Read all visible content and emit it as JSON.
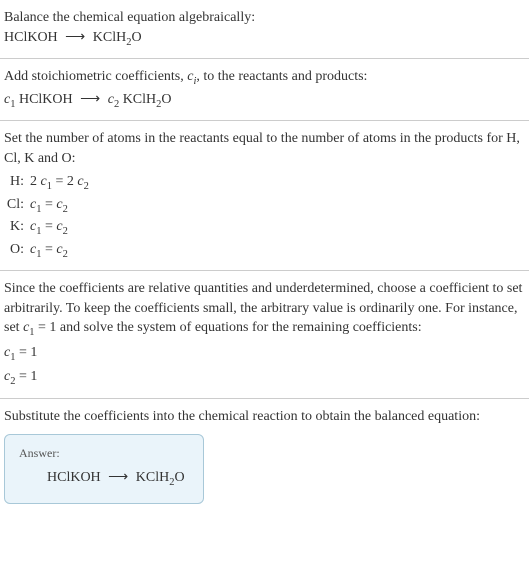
{
  "section1": {
    "line1_pre": "Balance the chemical equation algebraically:",
    "eq_left": "HClKOH",
    "eq_arrow": "⟶",
    "eq_right": "KClH",
    "eq_right_sub": "2",
    "eq_right_tail": "O"
  },
  "section2": {
    "line1_pre": "Add stoichiometric coefficients, ",
    "ci_c": "c",
    "ci_i": "i",
    "line1_post": ", to the reactants and products:",
    "c1_c": "c",
    "c1_1": "1",
    "sp1": " HClKOH ",
    "arrow": "⟶",
    "c2_c": "c",
    "c2_2": "2",
    "sp2": " KClH",
    "sub2": "2",
    "tail": "O"
  },
  "section3": {
    "intro": "Set the number of atoms in the reactants equal to the number of atoms in the products for H, Cl, K and O:",
    "rows": [
      {
        "label": "H:",
        "lhs_coeff": "2 ",
        "c1": "c",
        "s1": "1",
        "eq": " = 2 ",
        "c2": "c",
        "s2": "2"
      },
      {
        "label": "Cl:",
        "lhs_coeff": "",
        "c1": "c",
        "s1": "1",
        "eq": " = ",
        "c2": "c",
        "s2": "2"
      },
      {
        "label": "K:",
        "lhs_coeff": "",
        "c1": "c",
        "s1": "1",
        "eq": " = ",
        "c2": "c",
        "s2": "2"
      },
      {
        "label": "O:",
        "lhs_coeff": "",
        "c1": "c",
        "s1": "1",
        "eq": " = ",
        "c2": "c",
        "s2": "2"
      }
    ]
  },
  "section4": {
    "para_a": "Since the coefficients are relative quantities and underdetermined, choose a coefficient to set arbitrarily. To keep the coefficients small, the arbitrary value is ordinarily one. For instance, set ",
    "c1c": "c",
    "c1s": "1",
    "para_b": " = 1 and solve the system of equations for the remaining coefficients:",
    "l1_c": "c",
    "l1_s": "1",
    "l1_v": " = 1",
    "l2_c": "c",
    "l2_s": "2",
    "l2_v": " = 1"
  },
  "section5": {
    "text": "Substitute the coefficients into the chemical reaction to obtain the balanced equation:",
    "answer_label": "Answer:",
    "eq_left": "HClKOH",
    "eq_arrow": "⟶",
    "eq_right": "KClH",
    "eq_sub": "2",
    "eq_tail": "O"
  },
  "colors": {
    "text": "#333333",
    "border": "#cccccc",
    "answer_bg": "#eaf4fa",
    "answer_border": "#a8c8d8",
    "answer_label": "#555555"
  }
}
